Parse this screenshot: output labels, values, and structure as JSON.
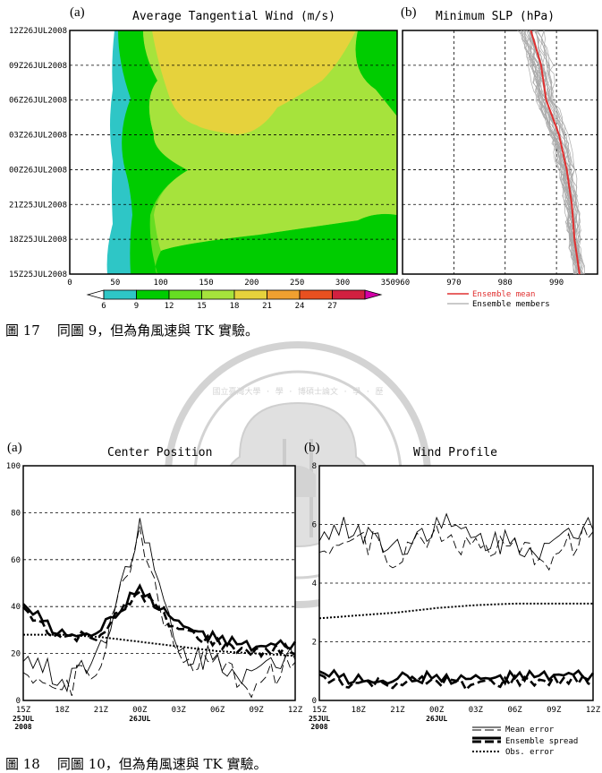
{
  "fig17": {
    "panel_a": {
      "label": "(a)",
      "title": "Average Tangential Wind (m/s)",
      "y_ticks": [
        "12Z26JUL2008",
        "09Z26JUL2008",
        "06Z26JUL2008",
        "03Z26JUL2008",
        "00Z26JUL2008",
        "21Z25JUL2008",
        "18Z25JUL2008",
        "15Z25JUL2008"
      ],
      "x_ticks": [
        "0",
        "50",
        "100",
        "150",
        "200",
        "250",
        "300",
        "350"
      ],
      "colorbar_ticks": [
        "6",
        "9",
        "12",
        "15",
        "18",
        "21",
        "24",
        "27"
      ],
      "colorbar_colors": [
        "#ffffff",
        "#2ec6c6",
        "#00cc00",
        "#66dd22",
        "#a6e33c",
        "#e6d23c",
        "#f0a030",
        "#e85020",
        "#d22040",
        "#d400a8"
      ]
    },
    "panel_b": {
      "label": "(b)",
      "title": "Minimum SLP (hPa)",
      "x_ticks": [
        "960",
        "970",
        "980",
        "990"
      ],
      "legend": [
        "Ensemble mean",
        "Ensemble members"
      ],
      "mean_color": "#e03030",
      "member_color": "#999999"
    },
    "caption": "圖 17    同圖 9，但為角風速與 TK 實驗。"
  },
  "watermark": {
    "text": "國立臺灣大學 · 學 · 博碩士論文 · 學 · 歷"
  },
  "fig18": {
    "panel_a": {
      "label": "(a)",
      "title": "Center Position",
      "y_ticks": [
        "0",
        "20",
        "40",
        "60",
        "80",
        "100"
      ],
      "x_ticks": [
        "15Z",
        "18Z",
        "21Z",
        "00Z",
        "03Z",
        "06Z",
        "09Z",
        "12Z"
      ],
      "x_sub_start": [
        "25JUL",
        "2008"
      ],
      "x_sub_mid": "26JUL"
    },
    "panel_b": {
      "label": "(b)",
      "title": "Wind Profile",
      "y_ticks": [
        "0",
        "2",
        "4",
        "6",
        "8"
      ],
      "x_ticks": [
        "15Z",
        "18Z",
        "21Z",
        "00Z",
        "03Z",
        "06Z",
        "09Z",
        "12Z"
      ],
      "x_sub_start": [
        "25JUL",
        "2008"
      ],
      "x_sub_mid": "26JUL"
    },
    "legend": [
      "Mean error",
      "Ensemble spread",
      "Obs. error"
    ],
    "caption": "圖 18    同圖 10，但為角風速與 TK 實驗。"
  },
  "chart_data": [
    {
      "type": "heatmap",
      "title": "Average Tangential Wind (m/s)",
      "xlabel": "",
      "ylabel": "",
      "xlim": [
        0,
        360
      ],
      "y_categories": [
        "15Z25JUL2008",
        "18Z25JUL2008",
        "21Z25JUL2008",
        "00Z26JUL2008",
        "03Z26JUL2008",
        "06Z26JUL2008",
        "09Z26JUL2008",
        "12Z26JUL2008"
      ],
      "levels": [
        6,
        9,
        12,
        15,
        18,
        21,
        24,
        27
      ],
      "band_boundaries_x": {
        "9": [
          48,
          52,
          50,
          48,
          50,
          50,
          52,
          52
        ],
        "12": [
          68,
          68,
          64,
          58,
          66,
          70,
          78,
          82
        ],
        "15": [
          100,
          92,
          86,
          84,
          98,
          104,
          120,
          128
        ],
        "18": [
          0,
          0,
          0,
          0,
          0,
          160,
          118,
          100
        ]
      }
    },
    {
      "type": "line",
      "title": "Minimum SLP (hPa)",
      "xlim": [
        960,
        998
      ],
      "y_categories": [
        "15Z25JUL2008",
        "18Z25JUL2008",
        "21Z25JUL2008",
        "00Z26JUL2008",
        "03Z26JUL2008",
        "06Z26JUL2008",
        "09Z26JUL2008",
        "12Z26JUL2008"
      ],
      "series": [
        {
          "name": "Ensemble mean",
          "values": [
            994.5,
            993.5,
            993,
            992,
            990.5,
            988,
            987,
            985
          ]
        }
      ]
    },
    {
      "type": "line",
      "title": "Center Position",
      "ylim": [
        0,
        100
      ],
      "categories": [
        "15Z",
        "18Z",
        "21Z",
        "00Z",
        "03Z",
        "06Z",
        "09Z",
        "12Z"
      ],
      "series": [
        {
          "name": "Mean error",
          "values": [
            20,
            8,
            22,
            76,
            20,
            18,
            10,
            22
          ]
        },
        {
          "name": "Ensemble spread",
          "values": [
            40,
            28,
            30,
            48,
            32,
            26,
            22,
            24
          ]
        },
        {
          "name": "Obs. error",
          "values": [
            28,
            28,
            27,
            25,
            23,
            21,
            20,
            19
          ]
        }
      ]
    },
    {
      "type": "line",
      "title": "Wind Profile",
      "ylim": [
        0,
        8
      ],
      "categories": [
        "15Z",
        "18Z",
        "21Z",
        "00Z",
        "03Z",
        "06Z",
        "09Z",
        "12Z"
      ],
      "series": [
        {
          "name": "Mean error",
          "values": [
            5.7,
            5.9,
            5.2,
            6.1,
            5.5,
            5.4,
            5.2,
            6.2
          ]
        },
        {
          "name": "Ensemble spread",
          "values": [
            0.9,
            0.7,
            0.75,
            0.8,
            0.7,
            0.8,
            0.8,
            0.85
          ]
        },
        {
          "name": "Obs. error",
          "values": [
            2.8,
            2.9,
            3.0,
            3.15,
            3.25,
            3.3,
            3.3,
            3.3
          ]
        }
      ]
    }
  ]
}
